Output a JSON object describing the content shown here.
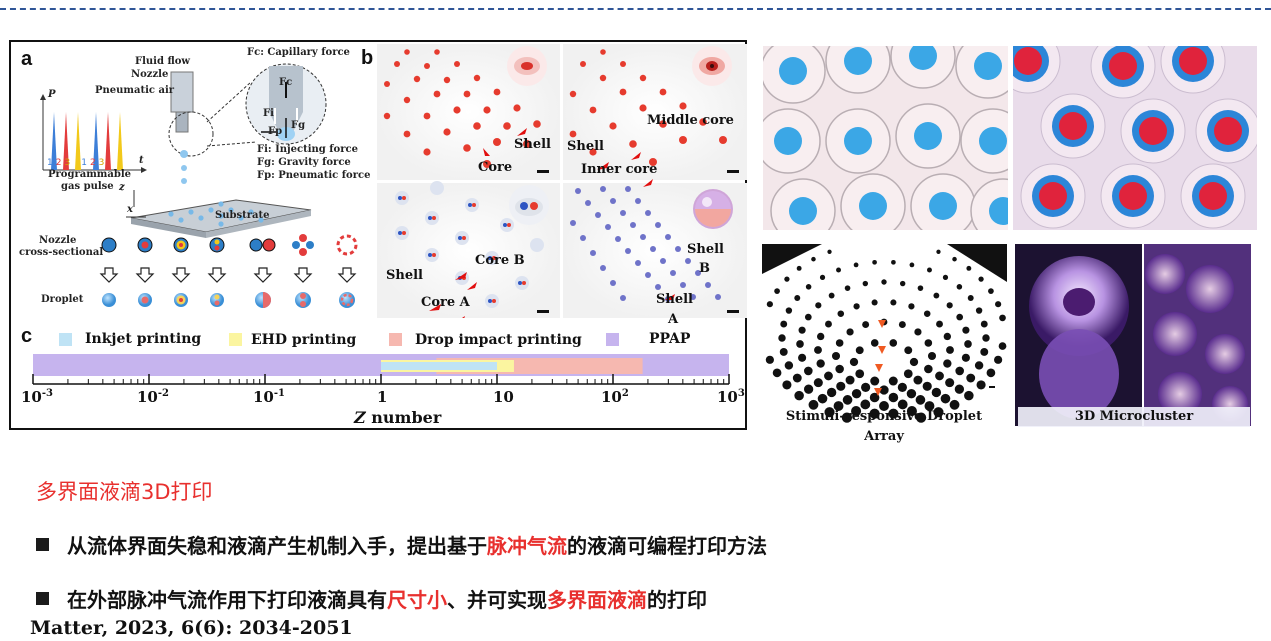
{
  "panels": {
    "a": {
      "letter": "a",
      "fluid_flow": "Fluid flow",
      "nozzle": "Nozzle",
      "pneumatic_air": "Pneumatic air",
      "p_axis": "P",
      "t_axis": "t",
      "pulse_numbers": [
        "1",
        "2",
        "3",
        "1",
        "2",
        "3"
      ],
      "programmable": "Programmable",
      "gas_pulse": "gas pulse",
      "fc": "Fc",
      "fi": "Fi",
      "fg": "Fg",
      "fp": "Fp",
      "force_fc": "Fc: Capillary force",
      "force_fi": "Fi: Injecting force",
      "force_fg": "Fg: Gravity force",
      "force_fp": "Fp: Pneumatic force",
      "axis_z": "z",
      "axis_x": "x",
      "substrate": "Substrate",
      "nozzle_cross_1": "Nozzle",
      "nozzle_cross_2": "cross-sectional",
      "droplet": "Droplet"
    },
    "b": {
      "letter": "b",
      "shell_1": "Shell",
      "core": "Core",
      "shell_2": "Shell",
      "middle_core": "Middle core",
      "inner_core": "Inner core",
      "shell_3": "Shell",
      "core_b": "Core B",
      "core_a": "Core A",
      "shell_b": "Shell",
      "shell_b2": "B",
      "shell_a": "Shell",
      "shell_a2": "A"
    },
    "c": {
      "letter": "c",
      "legend": [
        {
          "label": "Inkjet printing",
          "color": "#bfe3f5"
        },
        {
          "label": "EHD printing",
          "color": "#fbf5a0"
        },
        {
          "label": "Drop impact printing",
          "color": "#f6b8b0"
        },
        {
          "label": "PPAP",
          "color": "#c6b4ee"
        }
      ],
      "ticks": [
        {
          "base": "10",
          "exp": "-3"
        },
        {
          "base": "10",
          "exp": "-2"
        },
        {
          "base": "10",
          "exp": "-1"
        },
        {
          "base": "1",
          "exp": ""
        },
        {
          "base": "10",
          "exp": ""
        },
        {
          "base": "10",
          "exp": "2"
        },
        {
          "base": "10",
          "exp": "3"
        }
      ],
      "axis_label_italic": "Z",
      "axis_label_rest": " number"
    }
  },
  "chart_data": {
    "type": "bar",
    "x_scale": "log",
    "xlim": [
      0.001,
      1000
    ],
    "xlabel": "Z number",
    "ranges": [
      {
        "name": "PPAP",
        "min": 0.001,
        "max": 1000
      },
      {
        "name": "Drop impact printing",
        "min": 3,
        "max": 180
      },
      {
        "name": "EHD printing",
        "min": 1,
        "max": 14
      },
      {
        "name": "Inkjet printing",
        "min": 1,
        "max": 10
      }
    ]
  },
  "right_captions": {
    "array": "Stimuli-responsive Droplet Array",
    "microcluster": "3D Microcluster"
  },
  "text": {
    "heading": "多界面液滴3D打印",
    "b1_pre": "从流体界面失稳和液滴产生机制入手，提出基于",
    "b1_red": "脉冲气流",
    "b1_post": "的液滴可编程打印方法",
    "b2_pre": "在外部脉冲气流作用下打印液滴具有",
    "b2_red1": "尺寸小",
    "b2_mid": "、并可实现",
    "b2_red2": "多界面液滴",
    "b2_post": "的打印",
    "reference": "Matter, 2023, 6(6): 2034-2051"
  },
  "colors": {
    "accent_red": "#e8302e",
    "dash_blue": "#2f5597"
  }
}
